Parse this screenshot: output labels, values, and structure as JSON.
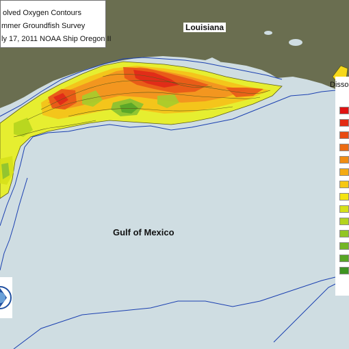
{
  "title_lines": [
    "olved Oxygen Contours",
    "mmer Groundfish Survey",
    "ly 17, 2011 NOAA Ship Oregon II"
  ],
  "places": {
    "louisiana": "Louisiana",
    "gulf": "Gulf of Mexico"
  },
  "legend": {
    "header": "Disso",
    "swatch_colors": [
      "#e01212",
      "#e42a12",
      "#e84a12",
      "#ec6a12",
      "#f08c12",
      "#f4aa12",
      "#f6c812",
      "#f4e412",
      "#d6e01a",
      "#b4d41e",
      "#92c622",
      "#74b624",
      "#58a624",
      "#3e9420"
    ]
  },
  "colors": {
    "water": "#cfdde2",
    "land": "#6a6e50",
    "coastline": "#1a3fb0",
    "contour": "#5a5a18"
  }
}
